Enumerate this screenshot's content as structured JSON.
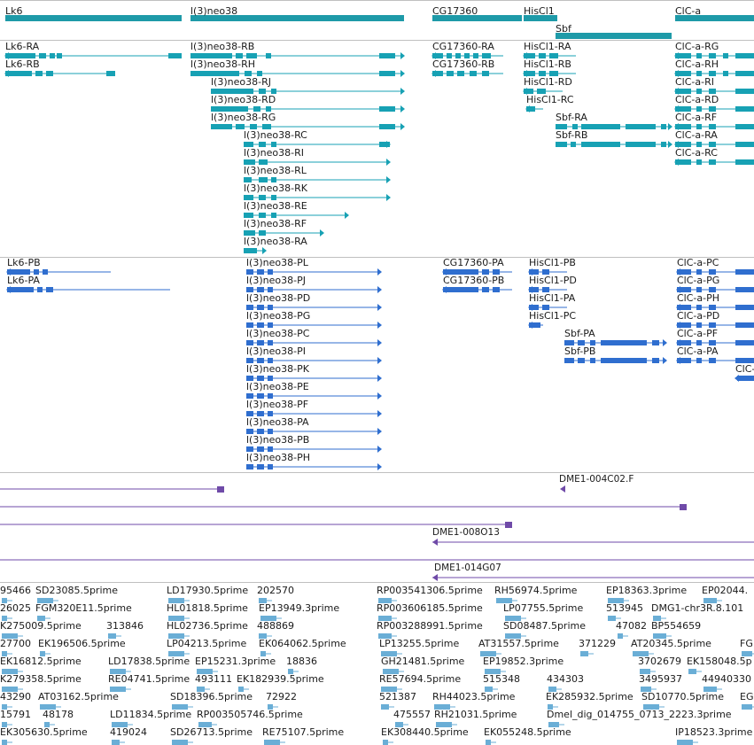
{
  "colors": {
    "gene": "#1e9aa8",
    "transcriptA": "#17a1b4",
    "transcriptB": "#2f6ecf",
    "est": "#6f4aa8",
    "read": "#6aaed6",
    "separator": "#c0c0c0"
  },
  "gene_track": {
    "genes": [
      {
        "name": "Lk6",
        "strand": "-"
      },
      {
        "name": "l(3)neo38",
        "strand": "+"
      },
      {
        "name": "CG17360",
        "strand": "-"
      },
      {
        "name": "HisCl1",
        "strand": "-"
      },
      {
        "name": "Sbf",
        "strand": "+"
      },
      {
        "name": "ClC-a",
        "strand": "-"
      }
    ]
  },
  "transcripts_a": [
    "Lk6-RA",
    "Lk6-RB",
    "l(3)neo38-RB",
    "l(3)neo38-RH",
    "l(3)neo38-RJ",
    "l(3)neo38-RD",
    "l(3)neo38-RG",
    "l(3)neo38-RC",
    "l(3)neo38-RI",
    "l(3)neo38-RL",
    "l(3)neo38-RK",
    "l(3)neo38-RE",
    "l(3)neo38-RF",
    "l(3)neo38-RA",
    "CG17360-RA",
    "CG17360-RB",
    "HisCl1-RA",
    "HisCl1-RB",
    "HisCl1-RD",
    "HisCl1-RC",
    "Sbf-RA",
    "Sbf-RB",
    "ClC-a-RG",
    "ClC-a-RH",
    "ClC-a-RI",
    "ClC-a-RD",
    "ClC-a-RF",
    "ClC-a-RA",
    "ClC-a-RC"
  ],
  "transcripts_b": [
    "Lk6-PB",
    "Lk6-PA",
    "l(3)neo38-PL",
    "l(3)neo38-PJ",
    "l(3)neo38-PD",
    "l(3)neo38-PG",
    "l(3)neo38-PC",
    "l(3)neo38-PI",
    "l(3)neo38-PK",
    "l(3)neo38-PE",
    "l(3)neo38-PF",
    "l(3)neo38-PA",
    "l(3)neo38-PB",
    "l(3)neo38-PH",
    "CG17360-PA",
    "CG17360-PB",
    "HisCl1-PB",
    "HisCl1-PD",
    "HisCl1-PA",
    "HisCl1-PC",
    "Sbf-PA",
    "Sbf-PB",
    "ClC-a-PC",
    "ClC-a-PG",
    "ClC-a-PH",
    "ClC-a-PD",
    "ClC-a-PF",
    "ClC-a-PA",
    "ClC-"
  ],
  "est_track": {
    "labels": [
      "DME1-004C02.F",
      "DME1-008O13",
      "DME1-014G07"
    ]
  },
  "reads_track": {
    "rows": [
      [
        "95466",
        "SD23085.5prime",
        "LD17930.5prime",
        "202570",
        "RP003541306.5prime",
        "RH56974.5prime",
        "EP18363.3prime",
        "EP02044."
      ],
      [
        "26025",
        "FGM320E11.5prime",
        "HL01818.5prime",
        "EP13949.3prime",
        "RP003606185.5prime",
        "LP07755.5prime",
        "513945",
        "DMG1-chr3R.8.101"
      ],
      [
        "K275009.5prime",
        "313846",
        "HL02736.5prime",
        "488869",
        "RP003288991.5prime",
        "SD08487.5prime",
        "47082",
        "BP554659"
      ],
      [
        "27700",
        "EK196506.5prime",
        "LP04213.5prime",
        "EK064062.5prime",
        "LP13255.5prime",
        "AT31557.5prime",
        "371229",
        "AT20345.5prime",
        "FG"
      ],
      [
        "EK16812.5prime",
        "LD17838.5prime",
        "EP15231.3prime",
        "18836",
        "GH21481.5prime",
        "EP19852.3prime",
        "3702679",
        "EK158048.5p"
      ],
      [
        "K279358.5prime",
        "RE04741.5prime",
        "493111",
        "EK182939.5prime",
        "RE57694.5prime",
        "515348",
        "434303",
        "3495937",
        "44940330"
      ],
      [
        "43290",
        "AT03162.5prime",
        "SD18396.5prime",
        "72922",
        "521387",
        "RH44023.5prime",
        "EK285932.5prime",
        "SD10770.5prime",
        "EG"
      ],
      [
        "15791",
        "48178",
        "LD11834.5prime",
        "RP003505746.5prime",
        "475557",
        "RH21031.5prime",
        "Dmel_dig_014755_0713_2223.3prime"
      ],
      [
        "EK305630.5prime",
        "419024",
        "SD26713.5prime",
        "RE75107.5prime",
        "EK308440.5prime",
        "EK055248.5prime",
        "IP18523.3prime"
      ]
    ]
  }
}
